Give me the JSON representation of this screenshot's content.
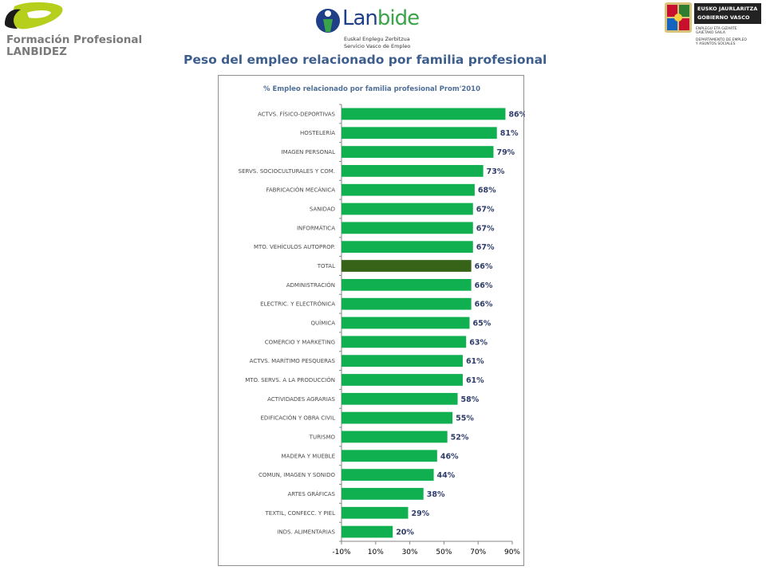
{
  "header": {
    "fp_logo": {
      "line1": "Formación Profesional",
      "line2": "LANBIDEZ"
    },
    "lanbide_logo": {
      "name_part1": "Lan",
      "name_part2": "bide",
      "sub1": "Euskal Enplegu Zerbitzua",
      "sub2": "Servicio Vasco de Empleo"
    },
    "gv_logo": {
      "line1": "EUSKO JAURLARITZA",
      "line2": "GOBIERNO VASCO",
      "dept1": "ENPLEGU ETA GIZARTE",
      "dept2": "GAIETAKO SAILA",
      "dept3": "DEPARTAMENTO DE EMPLEO",
      "dept4": "Y ASUNTOS SOCIALES"
    }
  },
  "slide_title": "Peso del empleo relacionado por familia profesional",
  "colors": {
    "bar": "#10b050",
    "bar_highlight": "#366317",
    "title": "#3d5e8c",
    "value_label": "#2f3d6b"
  },
  "chart_data": {
    "type": "bar",
    "orientation": "horizontal",
    "title": "% Empleo relacionado por familia profesional Prom'2010",
    "categories": [
      "ACTVS. FÍSICO-DEPORTIVAS",
      "HOSTELERÍA",
      "IMAGEN PERSONAL",
      "SERVS. SOCIOCULTURALES Y COM.",
      "FABRICACIÓN MECÁNICA",
      "SANIDAD",
      "INFORMÁTICA",
      "MTO. VEHÍCULOS AUTOPROP.",
      "TOTAL",
      "ADMINISTRACIÓN",
      "ELECTRIC. Y ELECTRÓNICA",
      "QUÍMICA",
      "COMERCIO Y MARKETING",
      "ACTVS. MARÍTIMO PESQUERAS",
      "MTO. SERVS. A LA PRODUCCIÓN",
      "ACTIVIDADES AGRARIAS",
      "EDIFICACIÓN Y OBRA CIVIL",
      "TURISMO",
      "MADERA Y MUEBLE",
      "COMUN, IMAGEN Y SONIDO",
      "ARTES GRÁFICAS",
      "TEXTIL, CONFECC. Y PIEL",
      "INDS. ALIMENTARIAS"
    ],
    "values": [
      86,
      81,
      79,
      73,
      68,
      67,
      67,
      67,
      66,
      66,
      66,
      65,
      63,
      61,
      61,
      58,
      55,
      52,
      46,
      44,
      38,
      29,
      20
    ],
    "value_labels": [
      "86%",
      "81%",
      "79%",
      "73%",
      "68%",
      "67%",
      "67%",
      "67%",
      "66%",
      "66%",
      "66%",
      "65%",
      "63%",
      "61%",
      "61%",
      "58%",
      "55%",
      "52%",
      "46%",
      "44%",
      "38%",
      "29%",
      "20%"
    ],
    "highlight_category": "TOTAL",
    "xlim": [
      -10,
      90
    ],
    "xticks": [
      -10,
      10,
      30,
      50,
      70,
      90
    ],
    "xtick_labels": [
      "-10%",
      "10%",
      "30%",
      "50%",
      "70%",
      "90%"
    ],
    "grid": false,
    "legend": "none"
  }
}
